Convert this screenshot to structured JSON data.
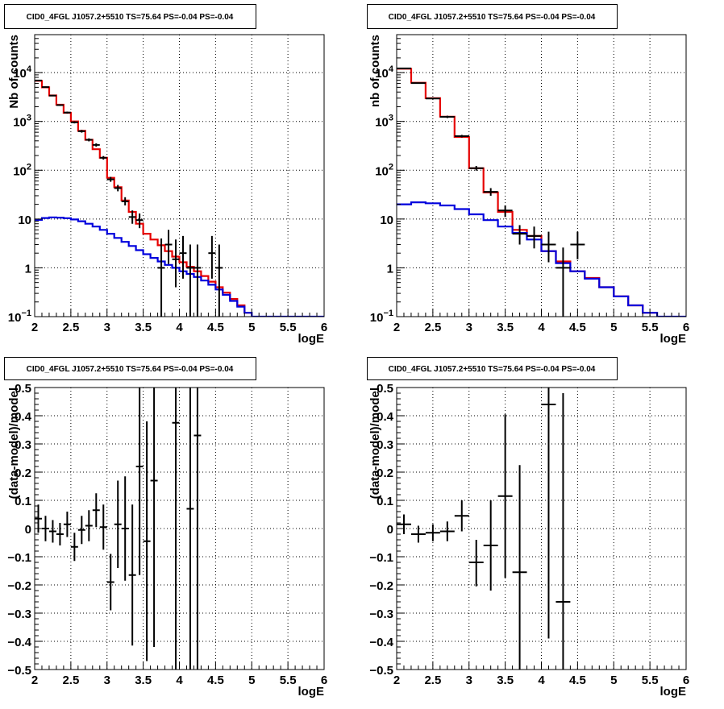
{
  "chart_data": [
    {
      "type": "line",
      "title": "CID0_4FGL J1057.2+5510 TS=75.64 PS=-0.04 PS=-0.04",
      "xlabel": "logE",
      "ylabel": "Nb of counts",
      "xlim": [
        2,
        6
      ],
      "ylim": [
        0.1,
        60000
      ],
      "yscale": "log",
      "grid": true,
      "xticks": [
        "2",
        "2.5",
        "3",
        "3.5",
        "4",
        "4.5",
        "5",
        "5.5",
        "6"
      ],
      "yticks": [
        {
          "v": 0.1,
          "label": "10",
          "exp": "−1"
        },
        {
          "v": 1,
          "label": "1",
          "exp": ""
        },
        {
          "v": 10,
          "label": "10",
          "exp": ""
        },
        {
          "v": 100,
          "label": "10",
          "exp": "2"
        },
        {
          "v": 1000,
          "label": "10",
          "exp": "3"
        },
        {
          "v": 10000,
          "label": "10",
          "exp": "4"
        }
      ],
      "bin_edges": [
        2.0,
        2.1,
        2.2,
        2.3,
        2.4,
        2.5,
        2.6,
        2.7,
        2.8,
        2.9,
        3.0,
        3.1,
        3.2,
        3.3,
        3.4,
        3.5,
        3.6,
        3.7,
        3.8,
        3.9,
        4.0,
        4.1,
        4.2,
        4.3,
        4.4,
        4.5,
        4.6,
        4.7,
        4.8,
        4.9,
        5.0,
        5.1,
        5.2,
        5.3,
        5.4,
        5.5,
        5.6,
        5.7,
        5.8,
        5.9,
        6.0
      ],
      "series": [
        {
          "color": "#e60000",
          "style": "step",
          "values": [
            6800,
            5000,
            3400,
            2200,
            1500,
            1000,
            640,
            420,
            270,
            180,
            70,
            45,
            24,
            14,
            8,
            5,
            3.8,
            2.9,
            2.2,
            1.7,
            1.3,
            1.05,
            0.85,
            0.68,
            0.52,
            0.4,
            0.31,
            0.23,
            0.17,
            0.12,
            null,
            null,
            null,
            null,
            null,
            null,
            null,
            null,
            null,
            null
          ]
        },
        {
          "color": "#0000dd",
          "style": "step",
          "values": [
            9.6,
            10.5,
            10.8,
            10.7,
            10.4,
            9.8,
            9.0,
            8.0,
            7.0,
            6.0,
            5.0,
            4.1,
            3.4,
            2.8,
            2.3,
            1.9,
            1.6,
            1.35,
            1.15,
            1.0,
            0.85,
            0.75,
            0.65,
            0.55,
            0.45,
            0.36,
            0.28,
            0.21,
            0.16,
            0.12,
            0.1,
            0.1,
            0.1,
            0.1,
            0.1,
            0.1,
            0.1,
            0.1,
            0.1,
            0.1
          ]
        }
      ],
      "points": [
        {
          "x": 2.05,
          "y": 6900,
          "lo": 6700,
          "hi": 7100
        },
        {
          "x": 2.15,
          "y": 5050,
          "lo": 4900,
          "hi": 5200
        },
        {
          "x": 2.25,
          "y": 3380,
          "lo": 3280,
          "hi": 3480
        },
        {
          "x": 2.35,
          "y": 2160,
          "lo": 2080,
          "hi": 2240
        },
        {
          "x": 2.45,
          "y": 1520,
          "lo": 1450,
          "hi": 1590
        },
        {
          "x": 2.55,
          "y": 960,
          "lo": 910,
          "hi": 1010
        },
        {
          "x": 2.65,
          "y": 630,
          "lo": 590,
          "hi": 670
        },
        {
          "x": 2.75,
          "y": 420,
          "lo": 390,
          "hi": 450
        },
        {
          "x": 2.85,
          "y": 330,
          "lo": 305,
          "hi": 355
        },
        {
          "x": 2.95,
          "y": 180,
          "lo": 165,
          "hi": 195
        },
        {
          "x": 3.05,
          "y": 65,
          "lo": 58,
          "hi": 73
        },
        {
          "x": 3.15,
          "y": 43,
          "lo": 37,
          "hi": 50
        },
        {
          "x": 3.25,
          "y": 23,
          "lo": 19,
          "hi": 28
        },
        {
          "x": 3.35,
          "y": 11,
          "lo": 8,
          "hi": 15
        },
        {
          "x": 3.45,
          "y": 9.5,
          "lo": 6.5,
          "hi": 13
        },
        {
          "x": 3.75,
          "y": 1,
          "lo": 0.1,
          "hi": 4
        },
        {
          "x": 3.85,
          "y": 3,
          "lo": 1.2,
          "hi": 6
        },
        {
          "x": 3.95,
          "y": 1.5,
          "lo": 0.4,
          "hi": 3.8
        },
        {
          "x": 4.05,
          "y": 2,
          "lo": 0.6,
          "hi": 4.5
        },
        {
          "x": 4.15,
          "y": 1,
          "lo": 0.1,
          "hi": 3
        },
        {
          "x": 4.25,
          "y": 1,
          "lo": 0.1,
          "hi": 3
        },
        {
          "x": 4.45,
          "y": 2,
          "lo": 0.6,
          "hi": 4.5
        },
        {
          "x": 4.55,
          "y": 1,
          "lo": 0.1,
          "hi": 3
        }
      ]
    },
    {
      "type": "line",
      "title": "CID0_4FGL J1057.2+5510 TS=75.64 PS=-0.04 PS=-0.04",
      "xlabel": "logE",
      "ylabel": "nb of counts",
      "xlim": [
        2,
        6
      ],
      "ylim": [
        0.1,
        60000
      ],
      "yscale": "log",
      "grid": true,
      "xticks": [
        "2",
        "2.5",
        "3",
        "3.5",
        "4",
        "4.5",
        "5",
        "5.5",
        "6"
      ],
      "yticks": [
        {
          "v": 0.1,
          "label": "10",
          "exp": "−1"
        },
        {
          "v": 1,
          "label": "1",
          "exp": ""
        },
        {
          "v": 10,
          "label": "10",
          "exp": ""
        },
        {
          "v": 100,
          "label": "10",
          "exp": "2"
        },
        {
          "v": 1000,
          "label": "10",
          "exp": "3"
        },
        {
          "v": 10000,
          "label": "10",
          "exp": "4"
        }
      ],
      "bin_edges": [
        2.0,
        2.2,
        2.4,
        2.6,
        2.8,
        3.0,
        3.2,
        3.4,
        3.6,
        3.8,
        4.0,
        4.2,
        4.4,
        4.6,
        4.8,
        5.0,
        5.2,
        5.4,
        5.6,
        5.8,
        6.0
      ],
      "series": [
        {
          "color": "#e60000",
          "style": "step",
          "values": [
            12000,
            6200,
            3000,
            1250,
            480,
            110,
            35,
            14,
            6,
            4.5,
            2.2,
            1.35,
            0.85,
            0.62,
            0.4,
            0.26,
            0.17,
            0.12,
            null,
            null
          ]
        },
        {
          "color": "#0000dd",
          "style": "step",
          "values": [
            20,
            22,
            21,
            19,
            16,
            12.5,
            9.5,
            7,
            5.2,
            3.8,
            2.2,
            1.25,
            0.85,
            0.6,
            0.4,
            0.26,
            0.17,
            0.12,
            0.1,
            0.1
          ]
        }
      ],
      "points": [
        {
          "x": 2.1,
          "y": 12200,
          "lo": 12000,
          "hi": 12400
        },
        {
          "x": 2.3,
          "y": 6100,
          "lo": 5950,
          "hi": 6250
        },
        {
          "x": 2.5,
          "y": 2950,
          "lo": 2850,
          "hi": 3050
        },
        {
          "x": 2.7,
          "y": 1240,
          "lo": 1170,
          "hi": 1310
        },
        {
          "x": 2.9,
          "y": 500,
          "lo": 470,
          "hi": 530
        },
        {
          "x": 3.1,
          "y": 110,
          "lo": 98,
          "hi": 122
        },
        {
          "x": 3.3,
          "y": 36,
          "lo": 30,
          "hi": 43
        },
        {
          "x": 3.5,
          "y": 15,
          "lo": 11,
          "hi": 19
        },
        {
          "x": 3.7,
          "y": 5,
          "lo": 3,
          "hi": 7.5
        },
        {
          "x": 3.9,
          "y": 4.5,
          "lo": 2.5,
          "hi": 7
        },
        {
          "x": 4.1,
          "y": 3,
          "lo": 1.3,
          "hi": 5.5
        },
        {
          "x": 4.3,
          "y": 1,
          "lo": 0.1,
          "hi": 2.6
        },
        {
          "x": 4.5,
          "y": 3,
          "lo": 1.5,
          "hi": 5.5
        }
      ]
    },
    {
      "type": "scatter",
      "title": "CID0_4FGL J1057.2+5510 TS=75.64 PS=-0.04 PS=-0.04",
      "xlabel": "logE",
      "ylabel": "(data-model)/model",
      "xlim": [
        2,
        6
      ],
      "ylim": [
        -0.5,
        0.5
      ],
      "yscale": "linear",
      "grid": true,
      "xticks": [
        "2",
        "2.5",
        "3",
        "3.5",
        "4",
        "4.5",
        "5",
        "5.5",
        "6"
      ],
      "yticks": [
        {
          "v": -0.5,
          "label": "−0.5",
          "exp": ""
        },
        {
          "v": -0.4,
          "label": "−0.4",
          "exp": ""
        },
        {
          "v": -0.3,
          "label": "−0.3",
          "exp": ""
        },
        {
          "v": -0.2,
          "label": "−0.2",
          "exp": ""
        },
        {
          "v": -0.1,
          "label": "−0.1",
          "exp": ""
        },
        {
          "v": 0,
          "label": "0",
          "exp": ""
        },
        {
          "v": 0.1,
          "label": "0.1",
          "exp": ""
        },
        {
          "v": 0.2,
          "label": "0.2",
          "exp": ""
        },
        {
          "v": 0.3,
          "label": "0.3",
          "exp": ""
        },
        {
          "v": 0.4,
          "label": "0.4",
          "exp": ""
        },
        {
          "v": 0.5,
          "label": "0.5",
          "exp": ""
        }
      ],
      "xerr": 0.05,
      "series": [],
      "points": [
        {
          "x": 2.05,
          "y": 0.035,
          "lo": -0.015,
          "hi": 0.085
        },
        {
          "x": 2.15,
          "y": 0.0,
          "lo": -0.045,
          "hi": 0.045
        },
        {
          "x": 2.25,
          "y": -0.01,
          "lo": -0.05,
          "hi": 0.03
        },
        {
          "x": 2.35,
          "y": -0.02,
          "lo": -0.06,
          "hi": 0.02
        },
        {
          "x": 2.45,
          "y": 0.015,
          "lo": -0.03,
          "hi": 0.06
        },
        {
          "x": 2.55,
          "y": -0.065,
          "lo": -0.115,
          "hi": -0.015
        },
        {
          "x": 2.65,
          "y": -0.005,
          "lo": -0.055,
          "hi": 0.045
        },
        {
          "x": 2.75,
          "y": 0.01,
          "lo": -0.045,
          "hi": 0.065
        },
        {
          "x": 2.85,
          "y": 0.065,
          "lo": 0.005,
          "hi": 0.125
        },
        {
          "x": 2.95,
          "y": 0.005,
          "lo": -0.075,
          "hi": 0.085
        },
        {
          "x": 3.05,
          "y": -0.19,
          "lo": -0.29,
          "hi": -0.09
        },
        {
          "x": 3.15,
          "y": 0.015,
          "lo": -0.14,
          "hi": 0.17
        },
        {
          "x": 3.25,
          "y": 0.0,
          "lo": -0.185,
          "hi": 0.185
        },
        {
          "x": 3.35,
          "y": -0.165,
          "lo": -0.415,
          "hi": 0.085
        },
        {
          "x": 3.45,
          "y": 0.22,
          "lo": -0.165,
          "hi": 0.6
        },
        {
          "x": 3.55,
          "y": -0.045,
          "lo": -0.47,
          "hi": 0.38
        },
        {
          "x": 3.65,
          "y": 0.17,
          "lo": -0.42,
          "hi": 0.6
        },
        {
          "x": 3.95,
          "y": 0.375,
          "lo": -0.5,
          "hi": 0.6
        },
        {
          "x": 4.15,
          "y": 0.07,
          "lo": -0.5,
          "hi": 0.6
        },
        {
          "x": 4.25,
          "y": 0.33,
          "lo": -0.5,
          "hi": 0.6
        }
      ]
    },
    {
      "type": "scatter",
      "title": "CID0_4FGL J1057.2+5510 TS=75.64 PS=-0.04 PS=-0.04",
      "xlabel": "logE",
      "ylabel": "(data-model)/model",
      "xlim": [
        2,
        6
      ],
      "ylim": [
        -0.5,
        0.5
      ],
      "yscale": "linear",
      "grid": true,
      "xticks": [
        "2",
        "2.5",
        "3",
        "3.5",
        "4",
        "4.5",
        "5",
        "5.5",
        "6"
      ],
      "yticks": [
        {
          "v": -0.5,
          "label": "−0.5",
          "exp": ""
        },
        {
          "v": -0.4,
          "label": "−0.4",
          "exp": ""
        },
        {
          "v": -0.3,
          "label": "−0.3",
          "exp": ""
        },
        {
          "v": -0.2,
          "label": "−0.2",
          "exp": ""
        },
        {
          "v": -0.1,
          "label": "−0.1",
          "exp": ""
        },
        {
          "v": 0,
          "label": "0",
          "exp": ""
        },
        {
          "v": 0.1,
          "label": "0.1",
          "exp": ""
        },
        {
          "v": 0.2,
          "label": "0.2",
          "exp": ""
        },
        {
          "v": 0.3,
          "label": "0.3",
          "exp": ""
        },
        {
          "v": 0.4,
          "label": "0.4",
          "exp": ""
        },
        {
          "v": 0.5,
          "label": "0.5",
          "exp": ""
        }
      ],
      "xerr": 0.1,
      "series": [],
      "points": [
        {
          "x": 2.1,
          "y": 0.015,
          "lo": -0.02,
          "hi": 0.05
        },
        {
          "x": 2.3,
          "y": -0.02,
          "lo": -0.05,
          "hi": 0.01
        },
        {
          "x": 2.5,
          "y": -0.015,
          "lo": -0.045,
          "hi": 0.015
        },
        {
          "x": 2.7,
          "y": -0.01,
          "lo": -0.045,
          "hi": 0.025
        },
        {
          "x": 2.9,
          "y": 0.045,
          "lo": -0.01,
          "hi": 0.1
        },
        {
          "x": 3.1,
          "y": -0.12,
          "lo": -0.205,
          "hi": -0.04
        },
        {
          "x": 3.3,
          "y": -0.06,
          "lo": -0.22,
          "hi": 0.1
        },
        {
          "x": 3.5,
          "y": 0.115,
          "lo": -0.175,
          "hi": 0.405
        },
        {
          "x": 3.7,
          "y": -0.155,
          "lo": -0.55,
          "hi": 0.225
        },
        {
          "x": 4.1,
          "y": 0.44,
          "lo": -0.39,
          "hi": 0.6
        },
        {
          "x": 4.3,
          "y": -0.26,
          "lo": -0.55,
          "hi": 0.48
        }
      ]
    }
  ]
}
